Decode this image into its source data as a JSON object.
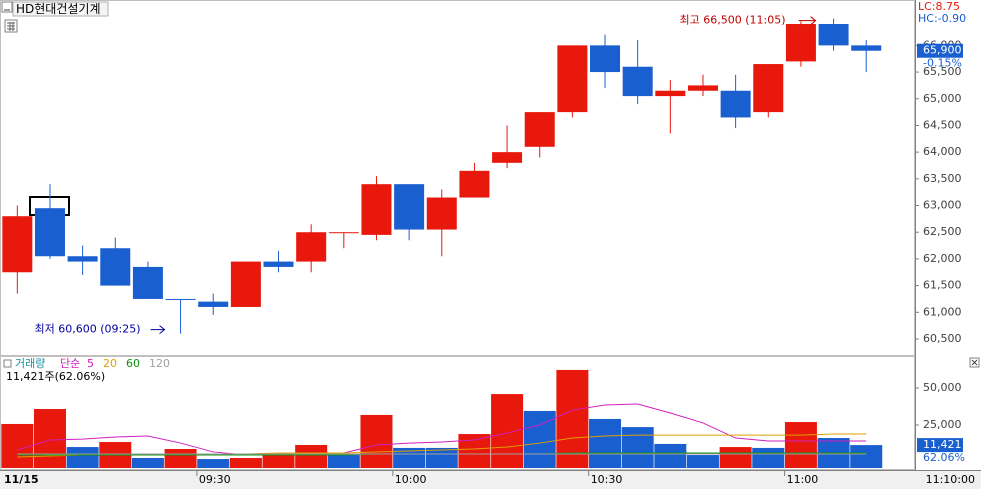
{
  "chart_data": [
    {
      "type": "candlestick",
      "title": "HD현대건설기계",
      "categories": [
        "11/15",
        null,
        null,
        null,
        null,
        null,
        "09:30",
        null,
        null,
        null,
        null,
        null,
        "10:00",
        null,
        null,
        null,
        null,
        null,
        "10:30",
        null,
        null,
        null,
        null,
        null,
        "11:00",
        null,
        null
      ],
      "open": [
        61750,
        62950,
        62050,
        62200,
        61850,
        61250,
        61200,
        61100,
        61950,
        61950,
        62500,
        62450,
        63400,
        62550,
        63150,
        63800,
        64100,
        64750,
        66000,
        65600,
        65050,
        65150,
        65150,
        64750,
        65700,
        66400,
        66000
      ],
      "high": [
        63000,
        63400,
        62250,
        62400,
        61950,
        61250,
        61350,
        61950,
        62150,
        62650,
        62500,
        63550,
        63400,
        63300,
        63800,
        64500,
        64750,
        66000,
        66200,
        66100,
        65350,
        65450,
        65450,
        65650,
        66450,
        66500,
        66100
      ],
      "low": [
        61350,
        62000,
        61700,
        61500,
        61250,
        60600,
        60950,
        61100,
        61750,
        61750,
        62200,
        62350,
        62350,
        62050,
        63150,
        63700,
        63900,
        64650,
        65200,
        64900,
        64350,
        65050,
        64450,
        64650,
        65600,
        65900,
        65500
      ],
      "close": [
        62800,
        62050,
        61950,
        61500,
        61250,
        61250,
        61100,
        61950,
        61850,
        62500,
        62500,
        63400,
        62550,
        63150,
        63650,
        64000,
        64750,
        66000,
        65500,
        65050,
        65150,
        65250,
        64650,
        65650,
        66400,
        66000,
        65900
      ],
      "colors": [
        "#e8180c",
        "#1a5fd0",
        "#1a5fd0",
        "#1a5fd0",
        "#1a5fd0",
        "#1a5fd0",
        "#1a5fd0",
        "#e8180c",
        "#1a5fd0",
        "#e8180c",
        "#e8180c",
        "#e8180c",
        "#1a5fd0",
        "#e8180c",
        "#e8180c",
        "#e8180c",
        "#e8180c",
        "#e8180c",
        "#1a5fd0",
        "#1a5fd0",
        "#e8180c",
        "#e8180c",
        "#1a5fd0",
        "#e8180c",
        "#e8180c",
        "#1a5fd0",
        "#1a5fd0"
      ],
      "ylim": [
        60200,
        66850
      ],
      "yticks": [
        {
          "value": 60500,
          "label": "60,500"
        },
        {
          "value": 61000,
          "label": "61,000"
        },
        {
          "value": 61500,
          "label": "61,500"
        },
        {
          "value": 62000,
          "label": "62,000"
        },
        {
          "value": 62500,
          "label": "62,500"
        },
        {
          "value": 63000,
          "label": "63,000"
        },
        {
          "value": 63500,
          "label": "63,500"
        },
        {
          "value": 64000,
          "label": "64,000"
        },
        {
          "value": 64500,
          "label": "64,500"
        },
        {
          "value": 65000,
          "label": "65,000"
        },
        {
          "value": 65500,
          "label": "65,500"
        },
        {
          "value": 66000,
          "label": "66,000"
        }
      ],
      "high_annotation": "최고 66,500 (11:05)",
      "low_annotation": "최저 60,600 (09:25)",
      "lc": "LC:8.75",
      "hc": "HC:-0.90",
      "last_price": {
        "value": 65900,
        "label": "65,900"
      },
      "change": "-0.15%",
      "time": "11:10:00"
    },
    {
      "type": "bar",
      "title": "거래량",
      "method": "단순",
      "info": "11,421주(62.06%)",
      "values": [
        25700,
        35800,
        10100,
        13500,
        2700,
        8800,
        2000,
        2700,
        6100,
        11500,
        4700,
        31800,
        9500,
        9500,
        18900,
        45900,
        34500,
        62200,
        29100,
        23600,
        12200,
        4700,
        10100,
        9500,
        27000,
        16200,
        11421
      ],
      "colors": [
        "#e8180c",
        "#e8180c",
        "#1a5fd0",
        "#e8180c",
        "#1a5fd0",
        "#e8180c",
        "#1a5fd0",
        "#e8180c",
        "#e8180c",
        "#e8180c",
        "#1a5fd0",
        "#e8180c",
        "#1a5fd0",
        "#1a5fd0",
        "#e8180c",
        "#e8180c",
        "#1a5fd0",
        "#e8180c",
        "#1a5fd0",
        "#1a5fd0",
        "#1a5fd0",
        "#1a5fd0",
        "#e8180c",
        "#1a5fd0",
        "#e8180c",
        "#1a5fd0",
        "#1a5fd0"
      ],
      "series": [
        {
          "name": "5",
          "color": "#d020c0",
          "values": [
            8100,
            14900,
            15500,
            16900,
            17600,
            12800,
            6800,
            4700,
            4700,
            4700,
            6100,
            11500,
            12800,
            13500,
            14900,
            19600,
            25000,
            35100,
            38500,
            39200,
            33100,
            26400,
            16200,
            14200,
            14200,
            14200,
            14200
          ]
        },
        {
          "name": "20",
          "color": "#e0a000",
          "values": [
            3400,
            4100,
            4700,
            5400,
            5400,
            5400,
            5400,
            5400,
            6100,
            6100,
            6100,
            6800,
            7400,
            8100,
            8800,
            10100,
            12800,
            16200,
            17600,
            18200,
            18200,
            18200,
            18200,
            18200,
            18200,
            18900,
            18900
          ]
        },
        {
          "name": "60",
          "color": "#109010",
          "values": [
            4700,
            4700,
            4700,
            4700,
            4700,
            4700,
            4700,
            4700,
            4700,
            4700,
            4700,
            5400,
            5400,
            5400,
            5400,
            5400,
            5400,
            6100,
            6100,
            6100,
            6100,
            6100,
            6100,
            6100,
            6100,
            6100,
            6100
          ]
        },
        {
          "name": "120",
          "color": "#a0a0a0",
          "values": [
            5400,
            5400,
            5400,
            5400,
            5400,
            5400,
            5400,
            5400,
            5400,
            5400,
            5400,
            5400,
            5400,
            5400,
            5400,
            5400,
            5400,
            5400,
            5400,
            5400,
            5400,
            5400,
            5400,
            5400,
            5400,
            5400,
            5400
          ]
        }
      ],
      "ylim": [
        -5400,
        70950
      ],
      "yticks": [
        {
          "value": 25000,
          "label": "25,000"
        },
        {
          "value": 50000,
          "label": "50,000"
        }
      ],
      "last_volume": {
        "value": 11421,
        "label": "11,421"
      },
      "ratio": "62.06%"
    }
  ]
}
